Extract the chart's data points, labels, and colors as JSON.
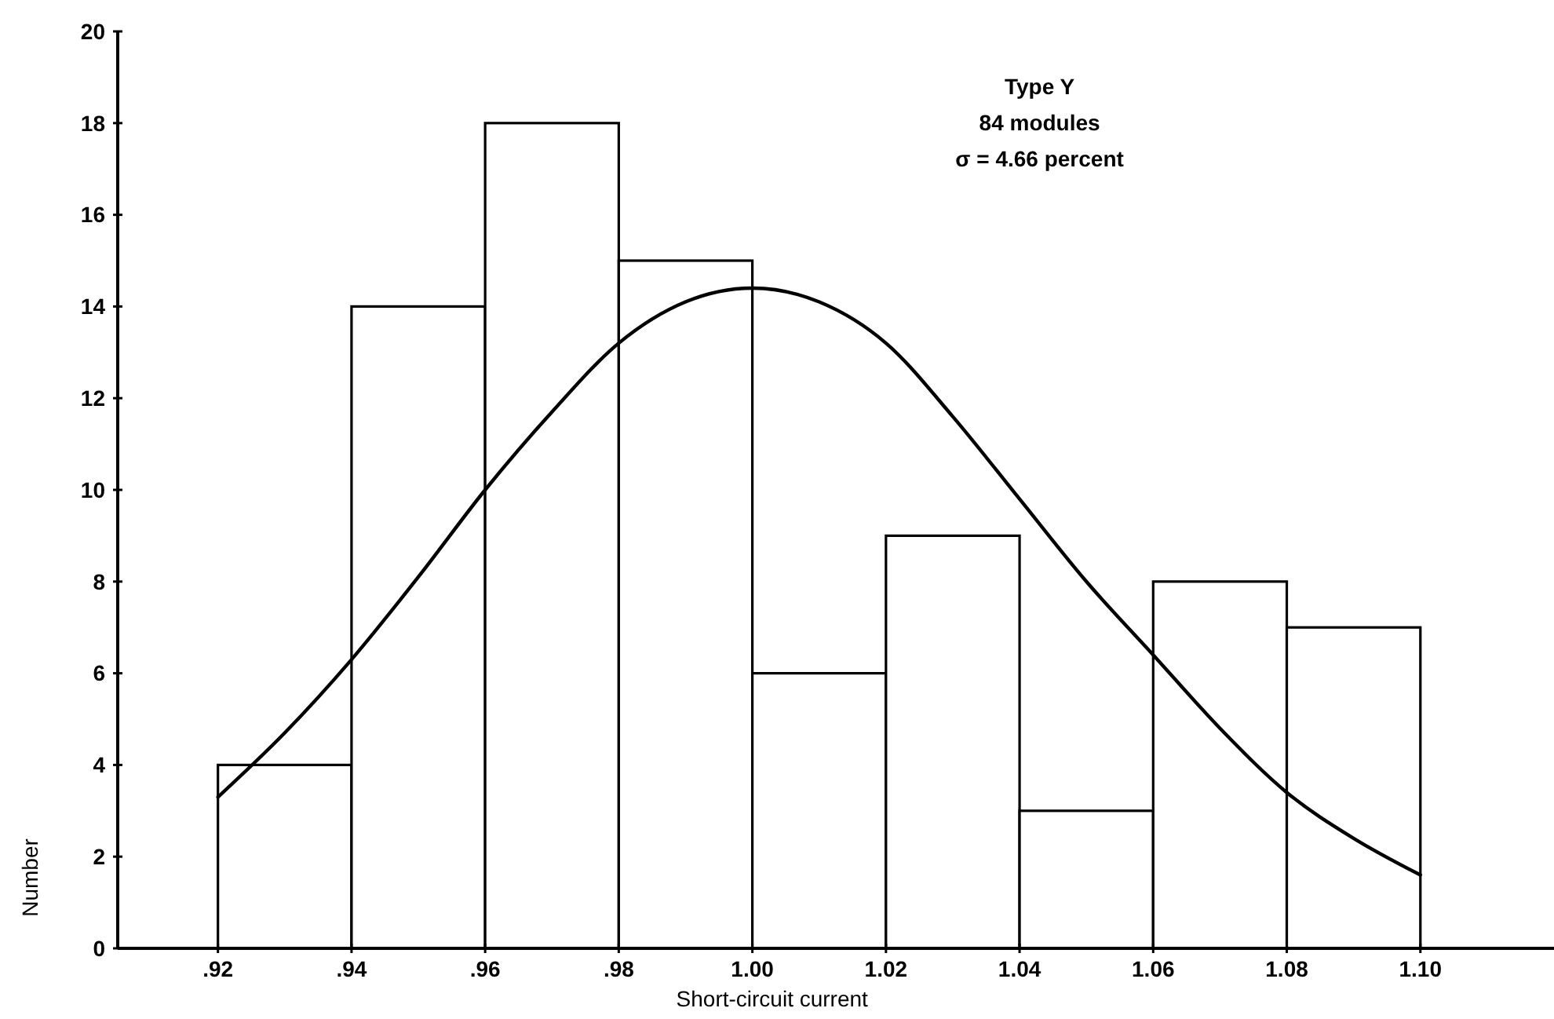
{
  "chart_data": {
    "type": "histogram",
    "xlabel": "Short-circuit current",
    "ylabel": "Number",
    "bins": [
      0.92,
      0.94,
      0.96,
      0.98,
      1.0,
      1.02,
      1.04,
      1.06,
      1.08,
      1.1
    ],
    "values": [
      4,
      14,
      18,
      15,
      6,
      9,
      3,
      8,
      7
    ],
    "color": "#000000",
    "series": [
      {
        "type": "line",
        "color": "#000000",
        "x": [
          0.92,
          0.93,
          0.94,
          0.95,
          0.96,
          0.97,
          0.98,
          0.99,
          1.0,
          1.01,
          1.02,
          1.03,
          1.04,
          1.05,
          1.06,
          1.07,
          1.08,
          1.09,
          1.1
        ],
        "values": [
          3.3,
          4.7,
          6.3,
          8.1,
          10.0,
          11.7,
          13.2,
          14.1,
          14.4,
          14.1,
          13.2,
          11.6,
          9.8,
          8.0,
          6.4,
          4.8,
          3.4,
          2.4,
          1.6
        ]
      }
    ],
    "xlim": [
      0.905,
      1.12
    ],
    "xticks": [
      {
        "value": 0.92,
        "label": ".92"
      },
      {
        "value": 0.94,
        "label": ".94"
      },
      {
        "value": 0.96,
        "label": ".96"
      },
      {
        "value": 0.98,
        "label": ".98"
      },
      {
        "value": 1.0,
        "label": "1.00"
      },
      {
        "value": 1.02,
        "label": "1.02"
      },
      {
        "value": 1.04,
        "label": "1.04"
      },
      {
        "value": 1.06,
        "label": "1.06"
      },
      {
        "value": 1.08,
        "label": "1.08"
      },
      {
        "value": 1.1,
        "label": "1.10"
      }
    ],
    "ylim": [
      0,
      20
    ],
    "yticks": [
      0,
      2,
      4,
      6,
      8,
      10,
      12,
      14,
      16,
      18,
      20
    ],
    "grid": false,
    "annotations": [
      "Type Y",
      "84 modules",
      "σ = 4.66 percent"
    ]
  }
}
